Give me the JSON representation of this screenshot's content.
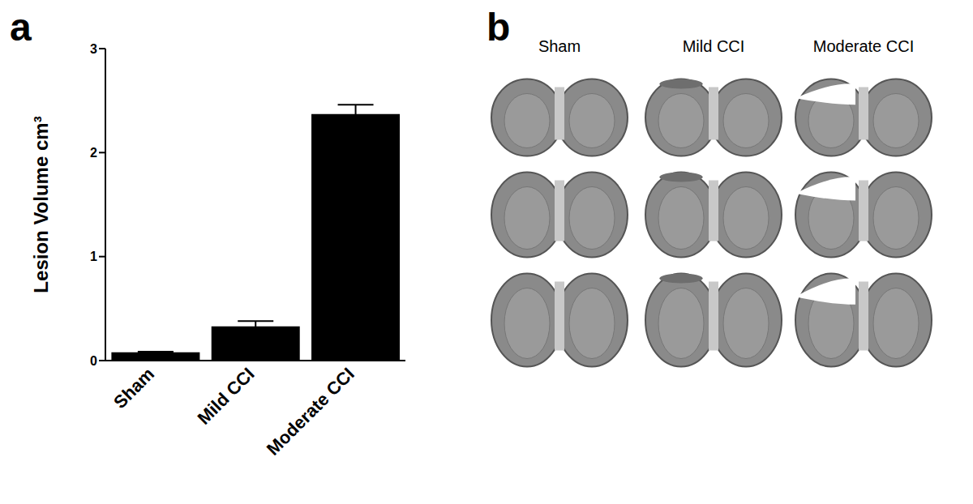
{
  "chart_data": {
    "type": "bar",
    "categories": [
      "Sham",
      "Mild CCI",
      "Moderate CCI"
    ],
    "values": [
      0.08,
      0.33,
      2.37
    ],
    "errors": [
      0.005,
      0.05,
      0.09
    ],
    "color": "#000000",
    "y_label": "Lesion Volume cm³",
    "ylim": [
      0,
      3
    ],
    "yticks": [
      0,
      1,
      2,
      3
    ],
    "grid": false
  },
  "panel_labels": [
    "a",
    "b"
  ],
  "image_panel": {
    "columns": [
      "Sham",
      "Mild CCI",
      "Moderate CCI"
    ]
  }
}
